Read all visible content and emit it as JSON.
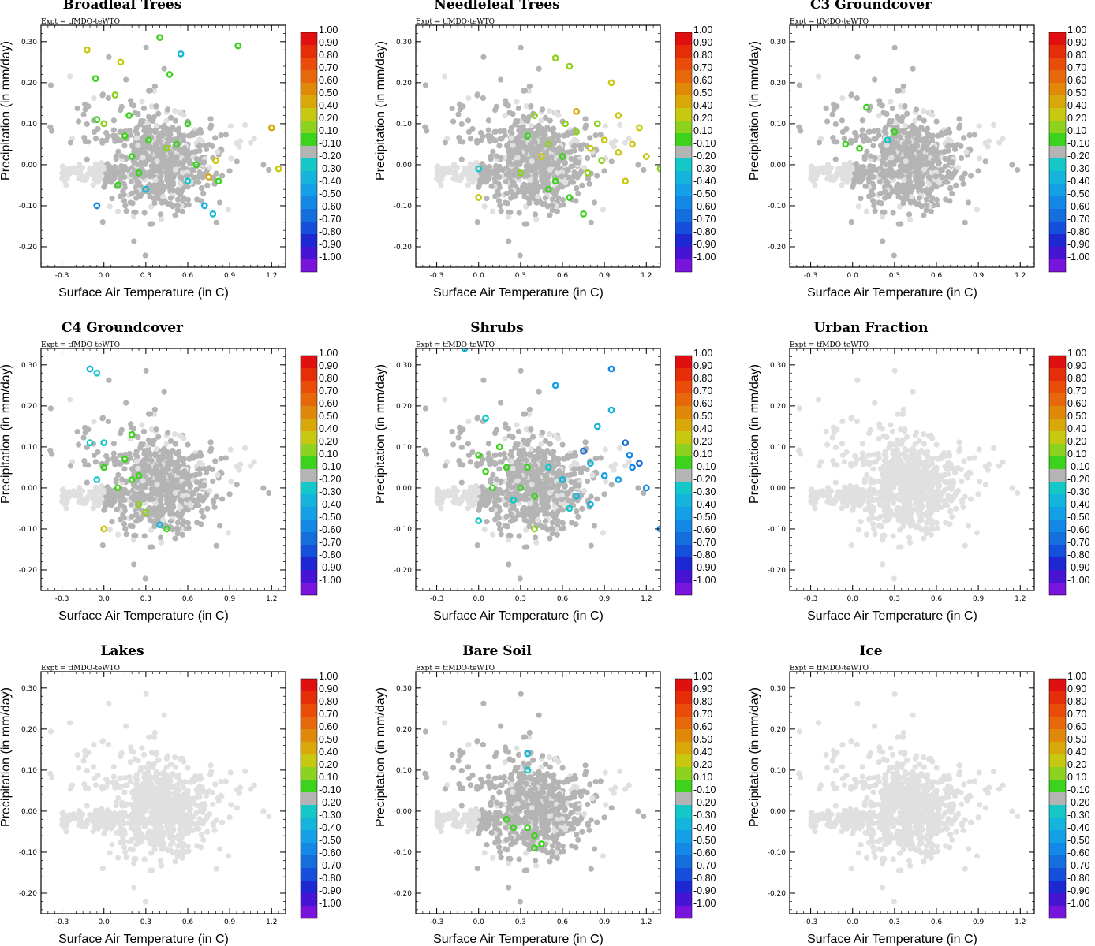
{
  "chart_data": {
    "type": "scatter",
    "experiment_label": "Expt = tfMDO-teWTO",
    "xlabel": "Surface Air Temperature (in C)",
    "ylabel": "Precipitation (in mm/day)",
    "xlim": [
      -0.45,
      1.3
    ],
    "ylim": [
      -0.25,
      0.34
    ],
    "x_ticks": [
      -0.3,
      0.0,
      0.3,
      0.6,
      0.9,
      1.2
    ],
    "x_tick_labels": [
      "-0.3",
      "0.0",
      "0.3",
      "0.6",
      "0.9",
      "1.2"
    ],
    "y_ticks": [
      0.3,
      0.2,
      0.1,
      0.0,
      -0.1,
      -0.2
    ],
    "y_tick_labels": [
      "0.30",
      "0.20",
      "0.10",
      "0.00",
      "-0.10",
      "-0.20"
    ],
    "colorbar": {
      "labels": [
        "1.00",
        "0.90",
        "0.80",
        "0.70",
        "0.60",
        "0.50",
        "0.40",
        "0.20",
        "0.10",
        "-0.10",
        "-0.20",
        "-0.30",
        "-0.40",
        "-0.50",
        "-0.60",
        "-0.70",
        "-0.80",
        "-0.90",
        "-1.00"
      ],
      "colors": [
        "#e01010",
        "#e62d0a",
        "#ea4c0a",
        "#e6680a",
        "#e0880a",
        "#d8a80a",
        "#c8c810",
        "#8cd21e",
        "#3cd21e",
        "#b4b4b4",
        "#14c8c8",
        "#14b4dc",
        "#14a0e6",
        "#1488e6",
        "#146edc",
        "#1450dc",
        "#1e28d2",
        "#4614d2",
        "#7814dc"
      ],
      "gray_level": "#b4b4b4",
      "light_gray": "#e0e0e0"
    },
    "panels": [
      {
        "title": "Broadleaf Trees",
        "highlight": [
          {
            "x": -0.05,
            "y": 0.11,
            "r": 0.15
          },
          {
            "x": 0.0,
            "y": 0.1,
            "r": 0.2
          },
          {
            "x": -0.06,
            "y": 0.21,
            "r": 0.15
          },
          {
            "x": 0.08,
            "y": 0.17,
            "r": 0.2
          },
          {
            "x": 0.15,
            "y": 0.07,
            "r": 0.1
          },
          {
            "x": 0.2,
            "y": 0.02,
            "r": 0.15
          },
          {
            "x": 0.32,
            "y": 0.06,
            "r": 0.15
          },
          {
            "x": 0.45,
            "y": 0.04,
            "r": 0.2
          },
          {
            "x": 0.52,
            "y": 0.05,
            "r": 0.1
          },
          {
            "x": 0.1,
            "y": -0.05,
            "r": 0.15
          },
          {
            "x": 0.25,
            "y": -0.02,
            "r": 0.15
          },
          {
            "x": 0.47,
            "y": 0.22,
            "r": 0.15
          },
          {
            "x": 0.96,
            "y": 0.29,
            "r": 0.15
          },
          {
            "x": 1.25,
            "y": -0.01,
            "r": 0.4
          },
          {
            "x": 0.75,
            "y": -0.03,
            "r": 0.5
          },
          {
            "x": 0.8,
            "y": 0.01,
            "r": 0.4
          },
          {
            "x": 0.6,
            "y": -0.04,
            "r": -0.25
          },
          {
            "x": 0.72,
            "y": -0.1,
            "r": -0.3
          },
          {
            "x": 0.78,
            "y": -0.12,
            "r": -0.3
          },
          {
            "x": -0.05,
            "y": -0.1,
            "r": -0.5
          },
          {
            "x": 0.55,
            "y": 0.27,
            "r": -0.3
          },
          {
            "x": 0.3,
            "y": -0.06,
            "r": -0.3
          },
          {
            "x": 1.2,
            "y": 0.09,
            "r": 0.5
          },
          {
            "x": 0.12,
            "y": 0.25,
            "r": 0.4
          },
          {
            "x": -0.12,
            "y": 0.28,
            "r": 0.4
          },
          {
            "x": 0.4,
            "y": 0.31,
            "r": 0.15
          },
          {
            "x": 0.66,
            "y": 0.0,
            "r": 0.15
          },
          {
            "x": 0.82,
            "y": -0.04,
            "r": 0.15
          },
          {
            "x": 0.18,
            "y": 0.12,
            "r": 0.15
          },
          {
            "x": 0.6,
            "y": 0.1,
            "r": 0.15
          }
        ]
      },
      {
        "title": "Needleleaf Trees",
        "highlight": [
          {
            "x": 0.5,
            "y": 0.05,
            "r": 0.2
          },
          {
            "x": 0.6,
            "y": 0.02,
            "r": 0.15
          },
          {
            "x": 0.7,
            "y": 0.08,
            "r": 0.3
          },
          {
            "x": 0.8,
            "y": 0.04,
            "r": 0.4
          },
          {
            "x": 0.9,
            "y": 0.06,
            "r": 0.4
          },
          {
            "x": 1.0,
            "y": 0.03,
            "r": 0.45
          },
          {
            "x": 1.1,
            "y": 0.05,
            "r": 0.45
          },
          {
            "x": 1.2,
            "y": 0.02,
            "r": 0.45
          },
          {
            "x": 0.55,
            "y": -0.04,
            "r": 0.15
          },
          {
            "x": 0.65,
            "y": -0.08,
            "r": 0.15
          },
          {
            "x": 0.75,
            "y": -0.12,
            "r": 0.15
          },
          {
            "x": 0.4,
            "y": 0.12,
            "r": 0.3
          },
          {
            "x": 0.3,
            "y": -0.02,
            "r": 0.2
          },
          {
            "x": 0.0,
            "y": -0.08,
            "r": 0.4
          },
          {
            "x": 0.95,
            "y": 0.2,
            "r": 0.4
          },
          {
            "x": 1.05,
            "y": -0.04,
            "r": 0.4
          },
          {
            "x": 1.3,
            "y": -0.01,
            "r": 0.35
          },
          {
            "x": 0.85,
            "y": 0.1,
            "r": 0.35
          },
          {
            "x": 0.78,
            "y": -0.02,
            "r": 0.25
          },
          {
            "x": 0.45,
            "y": 0.02,
            "r": 0.45
          },
          {
            "x": 0.0,
            "y": -0.01,
            "r": -0.25
          },
          {
            "x": 0.55,
            "y": 0.26,
            "r": 0.2
          },
          {
            "x": 0.65,
            "y": 0.24,
            "r": 0.25
          },
          {
            "x": 1.15,
            "y": 0.09,
            "r": 0.45
          },
          {
            "x": 0.62,
            "y": 0.1,
            "r": 0.25
          },
          {
            "x": 0.88,
            "y": 0.01,
            "r": 0.3
          },
          {
            "x": 0.35,
            "y": 0.07,
            "r": 0.15
          },
          {
            "x": 0.7,
            "y": 0.13,
            "r": 0.5
          },
          {
            "x": 1.0,
            "y": 0.12,
            "r": 0.4
          },
          {
            "x": 0.5,
            "y": -0.06,
            "r": 0.15
          }
        ]
      },
      {
        "title": "C3 Groundcover",
        "highlight": [
          {
            "x": -0.05,
            "y": 0.05,
            "r": 0.15
          },
          {
            "x": 0.05,
            "y": 0.04,
            "r": 0.15
          },
          {
            "x": 0.1,
            "y": 0.14,
            "r": 0.15
          },
          {
            "x": 0.3,
            "y": 0.08,
            "r": 0.15
          },
          {
            "x": 0.25,
            "y": 0.06,
            "r": -0.25
          }
        ]
      },
      {
        "title": "C4 Groundcover",
        "highlight": [
          {
            "x": -0.1,
            "y": 0.29,
            "r": -0.3
          },
          {
            "x": -0.05,
            "y": 0.28,
            "r": -0.25
          },
          {
            "x": -0.1,
            "y": 0.11,
            "r": -0.25
          },
          {
            "x": 0.0,
            "y": 0.11,
            "r": -0.25
          },
          {
            "x": 0.0,
            "y": 0.05,
            "r": 0.15
          },
          {
            "x": 0.2,
            "y": 0.13,
            "r": 0.15
          },
          {
            "x": 0.1,
            "y": 0.0,
            "r": 0.15
          },
          {
            "x": 0.2,
            "y": 0.02,
            "r": 0.15
          },
          {
            "x": 0.25,
            "y": -0.04,
            "r": 0.2
          },
          {
            "x": 0.3,
            "y": -0.06,
            "r": 0.3
          },
          {
            "x": 0.0,
            "y": -0.1,
            "r": 0.45
          },
          {
            "x": 0.4,
            "y": -0.09,
            "r": -0.3
          },
          {
            "x": 0.45,
            "y": -0.1,
            "r": 0.15
          },
          {
            "x": -0.05,
            "y": 0.02,
            "r": -0.25
          },
          {
            "x": 0.15,
            "y": 0.07,
            "r": 0.15
          },
          {
            "x": 0.25,
            "y": 0.03,
            "r": 0.15
          }
        ]
      },
      {
        "title": "Shrubs",
        "highlight": [
          {
            "x": 0.0,
            "y": 0.08,
            "r": 0.15
          },
          {
            "x": 0.05,
            "y": 0.04,
            "r": 0.15
          },
          {
            "x": 0.1,
            "y": 0.0,
            "r": 0.15
          },
          {
            "x": 0.2,
            "y": 0.05,
            "r": 0.15
          },
          {
            "x": 0.3,
            "y": 0.0,
            "r": 0.15
          },
          {
            "x": 0.4,
            "y": -0.02,
            "r": 0.15
          },
          {
            "x": 0.5,
            "y": 0.05,
            "r": -0.25
          },
          {
            "x": 0.6,
            "y": 0.02,
            "r": -0.3
          },
          {
            "x": 0.7,
            "y": -0.02,
            "r": -0.35
          },
          {
            "x": 0.8,
            "y": 0.06,
            "r": -0.35
          },
          {
            "x": 0.9,
            "y": 0.03,
            "r": -0.4
          },
          {
            "x": 1.0,
            "y": 0.02,
            "r": -0.45
          },
          {
            "x": 1.1,
            "y": 0.05,
            "r": -0.5
          },
          {
            "x": 1.2,
            "y": 0.0,
            "r": -0.5
          },
          {
            "x": 1.3,
            "y": -0.1,
            "r": -0.55
          },
          {
            "x": 0.95,
            "y": 0.29,
            "r": -0.55
          },
          {
            "x": 0.95,
            "y": 0.19,
            "r": -0.3
          },
          {
            "x": 0.85,
            "y": 0.15,
            "r": -0.35
          },
          {
            "x": 0.55,
            "y": 0.25,
            "r": -0.4
          },
          {
            "x": 1.05,
            "y": 0.11,
            "r": -0.6
          },
          {
            "x": 1.15,
            "y": 0.06,
            "r": -0.65
          },
          {
            "x": 0.75,
            "y": 0.09,
            "r": -0.6
          },
          {
            "x": 0.4,
            "y": -0.1,
            "r": 0.2
          },
          {
            "x": 0.0,
            "y": -0.08,
            "r": -0.25
          },
          {
            "x": 0.8,
            "y": -0.04,
            "r": -0.3
          },
          {
            "x": 0.35,
            "y": 0.05,
            "r": 0.15
          },
          {
            "x": 0.15,
            "y": 0.1,
            "r": 0.15
          },
          {
            "x": 0.25,
            "y": -0.03,
            "r": -0.25
          },
          {
            "x": 0.65,
            "y": -0.05,
            "r": -0.25
          },
          {
            "x": 1.08,
            "y": 0.08,
            "r": -0.55
          },
          {
            "x": -0.1,
            "y": 0.34,
            "r": -0.35
          },
          {
            "x": 0.05,
            "y": 0.17,
            "r": -0.25
          }
        ]
      },
      {
        "title": "Urban Fraction",
        "highlight": []
      },
      {
        "title": "Lakes",
        "highlight": []
      },
      {
        "title": "Bare Soil",
        "highlight": [
          {
            "x": 0.35,
            "y": 0.14,
            "r": -0.3
          },
          {
            "x": 0.35,
            "y": 0.1,
            "r": -0.25
          },
          {
            "x": 0.2,
            "y": -0.02,
            "r": 0.15
          },
          {
            "x": 0.25,
            "y": -0.04,
            "r": 0.15
          },
          {
            "x": 0.4,
            "y": -0.06,
            "r": 0.15
          },
          {
            "x": 0.45,
            "y": -0.08,
            "r": 0.15
          },
          {
            "x": 0.4,
            "y": -0.09,
            "r": 0.15
          },
          {
            "x": 0.35,
            "y": -0.04,
            "r": 0.15
          }
        ]
      },
      {
        "title": "Ice",
        "highlight": []
      }
    ]
  }
}
